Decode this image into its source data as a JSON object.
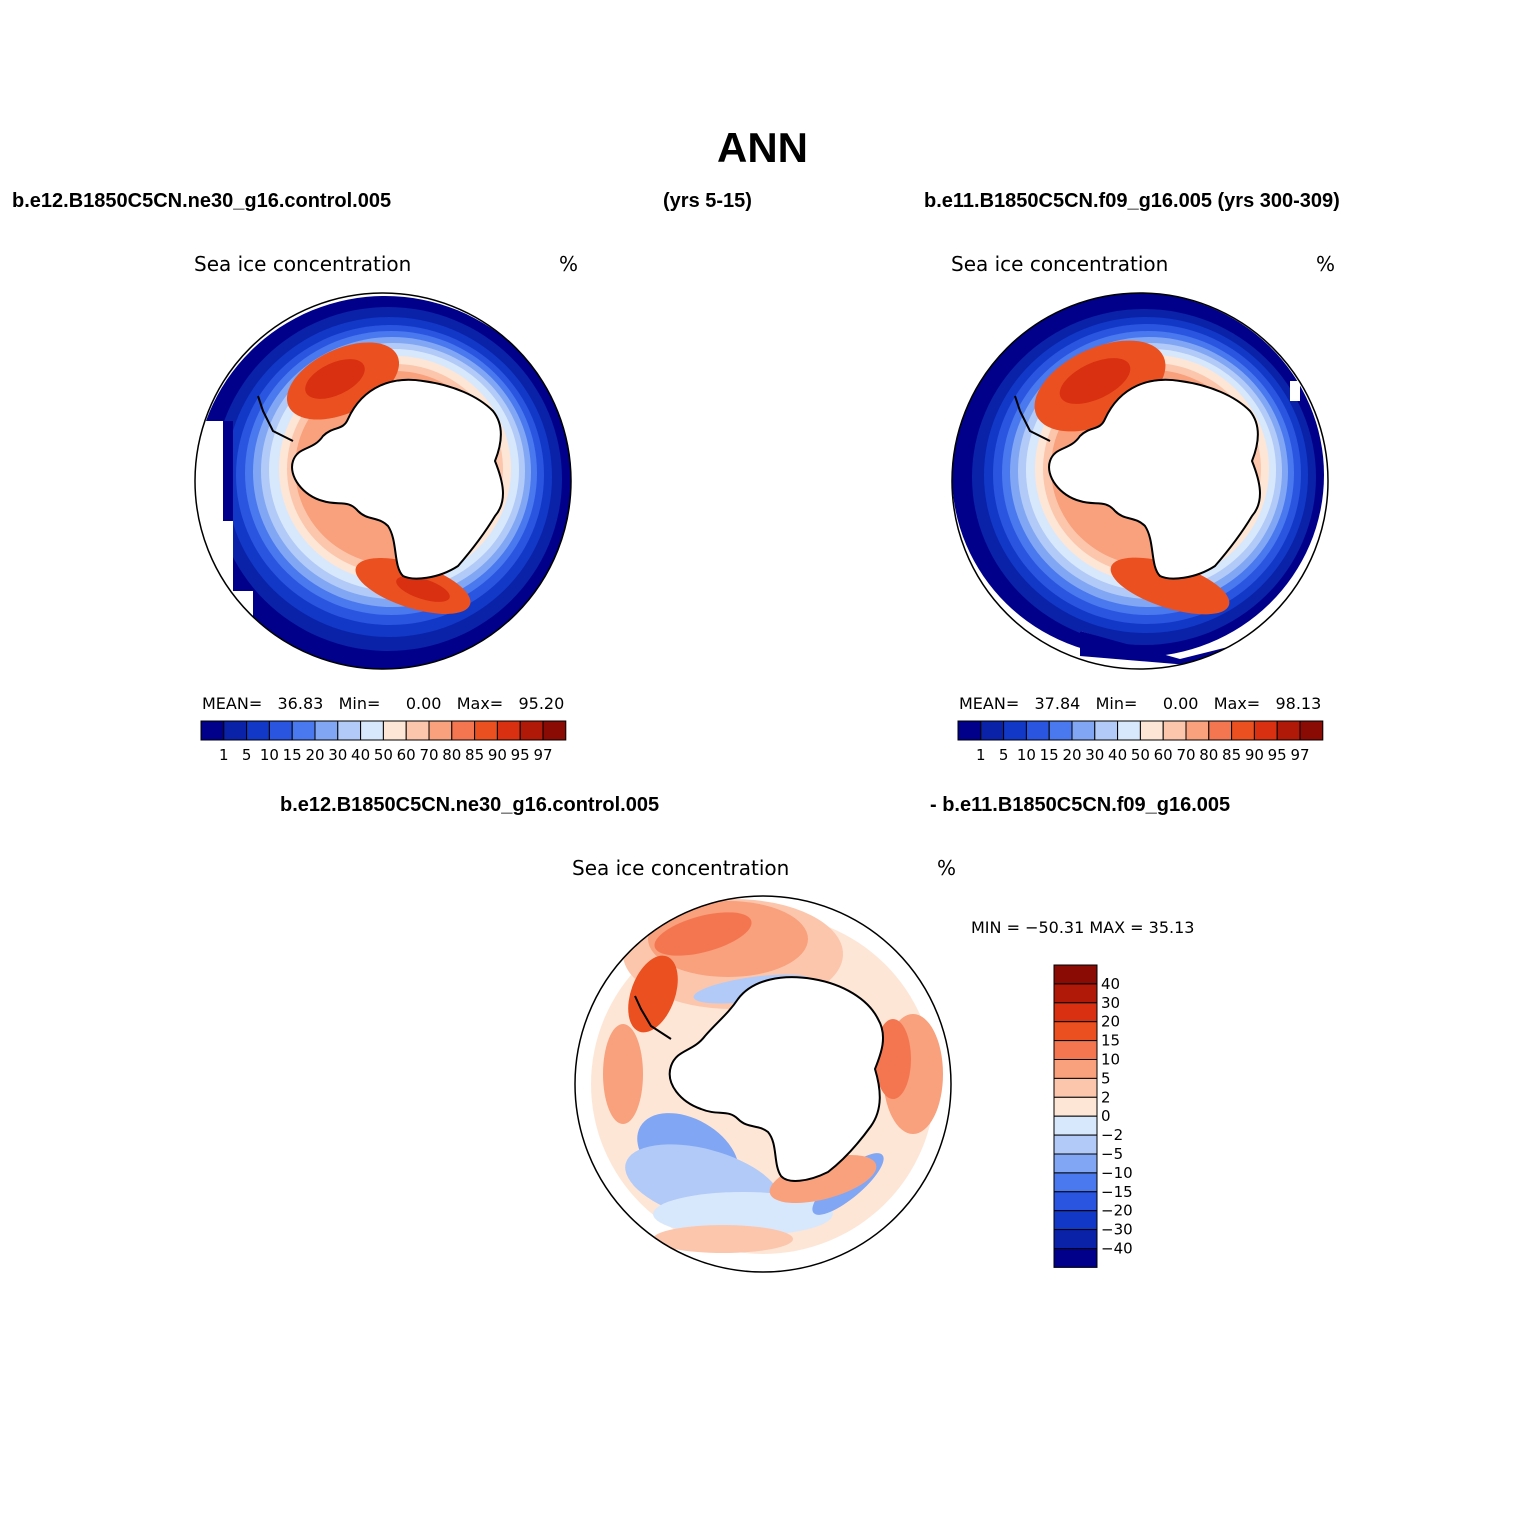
{
  "title": "ANN",
  "header": {
    "case1": "b.e12.B1850C5CN.ne30_g16.control.005",
    "case1_years": "(yrs 5-15)",
    "case2": "b.e11.B1850C5CN.f09_g16.005 (yrs 300-309)",
    "diff_case1": "b.e12.B1850C5CN.ne30_g16.control.005",
    "diff_case2": "- b.e11.B1850C5CN.f09_g16.005"
  },
  "panel_left": {
    "variable": "Sea ice concentration",
    "units": "%",
    "stats": {
      "mean_label": "MEAN=",
      "mean": "36.83",
      "min_label": "Min=",
      "min": "0.00",
      "max_label": "Max=",
      "max": "95.20"
    }
  },
  "panel_right": {
    "variable": "Sea ice concentration",
    "units": "%",
    "stats": {
      "mean_label": "MEAN=",
      "mean": "37.84",
      "min_label": "Min=",
      "min": "0.00",
      "max_label": "Max=",
      "max": "98.13"
    }
  },
  "panel_diff": {
    "variable": "Sea ice concentration",
    "units": "%",
    "minmax": "MIN = −50.31  MAX =   35.13"
  },
  "colorbar_abs": {
    "labels": [
      "1",
      "5",
      "10",
      "15",
      "20",
      "30",
      "40",
      "50",
      "60",
      "70",
      "80",
      "85",
      "90",
      "95",
      "97"
    ],
    "colors": [
      "#00008a",
      "#0a22a8",
      "#1238c8",
      "#2a55e0",
      "#4a78ee",
      "#80a6f4",
      "#b2caf8",
      "#d8e8fc",
      "#fde6d6",
      "#fcc6ac",
      "#f9a07c",
      "#f47650",
      "#ea5020",
      "#d83010",
      "#b01808",
      "#8a0a04"
    ]
  },
  "colorbar_diff": {
    "labels": [
      "40",
      "30",
      "20",
      "15",
      "10",
      "5",
      "2",
      "0",
      "−2",
      "−5",
      "−10",
      "−15",
      "−20",
      "−30",
      "−40"
    ],
    "colors": [
      "#8a0a04",
      "#b01808",
      "#d83010",
      "#ea5020",
      "#f47650",
      "#f9a07c",
      "#fcc6ac",
      "#fde6d6",
      "#d8e8fc",
      "#b2caf8",
      "#80a6f4",
      "#4a78ee",
      "#2a55e0",
      "#1238c8",
      "#0a22a8",
      "#00008a"
    ]
  }
}
